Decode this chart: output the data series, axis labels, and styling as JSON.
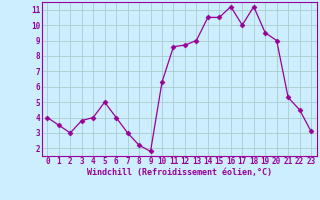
{
  "x": [
    0,
    1,
    2,
    3,
    4,
    5,
    6,
    7,
    8,
    9,
    10,
    11,
    12,
    13,
    14,
    15,
    16,
    17,
    18,
    19,
    20,
    21,
    22,
    23
  ],
  "y": [
    4,
    3.5,
    3,
    3.8,
    4,
    5,
    4,
    3,
    2.2,
    1.8,
    6.3,
    8.6,
    8.7,
    9,
    10.5,
    10.5,
    11.2,
    10,
    11.2,
    9.5,
    9,
    5.3,
    4.5,
    3.1
  ],
  "line_color": "#990099",
  "marker": "D",
  "marker_size": 2.5,
  "bg_color": "#cceeff",
  "grid_color": "#aacccc",
  "xlabel": "Windchill (Refroidissement éolien,°C)",
  "xlabel_fontsize": 6.0,
  "xlim": [
    -0.5,
    23.5
  ],
  "ylim": [
    1.5,
    11.5
  ],
  "yticks": [
    2,
    3,
    4,
    5,
    6,
    7,
    8,
    9,
    10,
    11
  ],
  "xticks": [
    0,
    1,
    2,
    3,
    4,
    5,
    6,
    7,
    8,
    9,
    10,
    11,
    12,
    13,
    14,
    15,
    16,
    17,
    18,
    19,
    20,
    21,
    22,
    23
  ],
  "tick_fontsize": 5.5,
  "tick_color": "#990099"
}
